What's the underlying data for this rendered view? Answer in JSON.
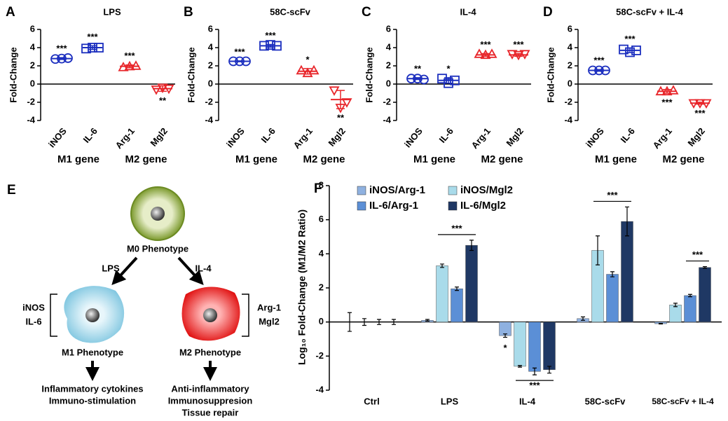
{
  "chart_data": [
    {
      "type": "dotplot",
      "panel": "A",
      "title": "LPS",
      "ylabel": "Fold-Change",
      "ylim": [
        -4,
        6
      ],
      "yticks": [
        -4,
        -2,
        0,
        2,
        4,
        6
      ],
      "categories": [
        "iNOS",
        "IL-6",
        "Arg-1",
        "Mgl2"
      ],
      "groups": [
        "M1 gene",
        "M2 gene"
      ],
      "colors": [
        "#1c2fbf",
        "#1c2fbf",
        "#e8262b",
        "#e8262b"
      ],
      "markers": [
        "circle",
        "square",
        "triangle",
        "triangle-down"
      ],
      "points": [
        [
          2.75,
          2.8,
          2.85
        ],
        [
          3.9,
          4.0,
          4.0
        ],
        [
          1.85,
          1.95,
          2.0
        ],
        [
          -0.6,
          -0.4,
          -0.5
        ]
      ],
      "means": [
        2.8,
        4.0,
        1.95,
        -0.5
      ],
      "sd": [
        0.1,
        0.2,
        0.15,
        0.3
      ],
      "significance": [
        "***",
        "***",
        "***",
        "**"
      ]
    },
    {
      "type": "dotplot",
      "panel": "B",
      "title": "58C-scFv",
      "ylabel": "Fold-Change",
      "ylim": [
        -4,
        6
      ],
      "yticks": [
        -4,
        -2,
        0,
        2,
        4,
        6
      ],
      "categories": [
        "iNOS",
        "IL-6",
        "Arg-1",
        "Mgl2"
      ],
      "groups": [
        "M1 gene",
        "M2 gene"
      ],
      "colors": [
        "#1c2fbf",
        "#1c2fbf",
        "#e8262b",
        "#e8262b"
      ],
      "markers": [
        "circle",
        "square",
        "triangle",
        "triangle-down"
      ],
      "points": [
        [
          2.5,
          2.5,
          2.5
        ],
        [
          4.2,
          4.3,
          4.2
        ],
        [
          1.5,
          1.2,
          1.5
        ],
        [
          -0.7,
          -2.6,
          -2.0
        ]
      ],
      "means": [
        2.5,
        4.2,
        1.4,
        -1.7
      ],
      "sd": [
        0.05,
        0.15,
        0.3,
        1.0
      ],
      "significance": [
        "***",
        "***",
        "*",
        "**"
      ]
    },
    {
      "type": "dotplot",
      "panel": "C",
      "title": "IL-4",
      "ylabel": "Fold-Change",
      "ylim": [
        -4,
        6
      ],
      "yticks": [
        -4,
        -2,
        0,
        2,
        4,
        6
      ],
      "categories": [
        "iNOS",
        "IL-6",
        "Arg-1",
        "Mgl2"
      ],
      "groups": [
        "M1 gene",
        "M2 gene"
      ],
      "colors": [
        "#1c2fbf",
        "#1c2fbf",
        "#e8262b",
        "#e8262b"
      ],
      "markers": [
        "circle",
        "square",
        "triangle",
        "triangle-down"
      ],
      "points": [
        [
          0.6,
          0.6,
          0.5
        ],
        [
          0.6,
          0.1,
          0.4
        ],
        [
          3.3,
          3.2,
          3.3
        ],
        [
          3.3,
          3.2,
          3.3
        ]
      ],
      "means": [
        0.6,
        0.4,
        3.2,
        3.2
      ],
      "sd": [
        0.1,
        0.3,
        0.15,
        0.15
      ],
      "significance": [
        "**",
        "*",
        "***",
        "***"
      ]
    },
    {
      "type": "dotplot",
      "panel": "D",
      "title": "58C-scFv + IL-4",
      "ylabel": "Fold-Change",
      "ylim": [
        -4,
        6
      ],
      "yticks": [
        -4,
        -2,
        0,
        2,
        4,
        6
      ],
      "categories": [
        "iNOS",
        "IL-6",
        "Arg-1",
        "Mgl2"
      ],
      "groups": [
        "M1 gene",
        "M2 gene"
      ],
      "colors": [
        "#1c2fbf",
        "#1c2fbf",
        "#e8262b",
        "#e8262b"
      ],
      "markers": [
        "circle",
        "square",
        "triangle",
        "triangle-down"
      ],
      "points": [
        [
          1.5,
          1.5,
          1.5
        ],
        [
          3.8,
          3.5,
          3.7
        ],
        [
          -0.8,
          -0.8,
          -0.7
        ],
        [
          -2.1,
          -2.1,
          -2.1
        ]
      ],
      "means": [
        1.5,
        3.7,
        -0.8,
        -2.1
      ],
      "sd": [
        0.1,
        0.25,
        0.2,
        0.1
      ],
      "significance": [
        "***",
        "***",
        "***",
        "***"
      ]
    },
    {
      "type": "bar",
      "panel": "F",
      "ylabel": "Log₁₀ Fold-Change (M1/M2 Ratio)",
      "ylim": [
        -4,
        8
      ],
      "yticks": [
        -4,
        -2,
        0,
        2,
        4,
        6,
        8
      ],
      "categories": [
        "Ctrl",
        "LPS",
        "IL-4",
        "58C-scFv",
        "58C-scFv + IL-4"
      ],
      "series": [
        {
          "name": "iNOS/Arg-1",
          "color": "#8fb1e0",
          "values": [
            0,
            0.1,
            -0.8,
            0.2,
            -0.1
          ],
          "errors": [
            0.55,
            0.05,
            0.1,
            0.1,
            0.02
          ]
        },
        {
          "name": "iNOS/Mgl2",
          "color": "#a9dbea",
          "values": [
            0,
            3.3,
            -2.6,
            4.2,
            1.0
          ],
          "errors": [
            0.2,
            0.1,
            0.05,
            0.85,
            0.1
          ]
        },
        {
          "name": "IL-6/Arg-1",
          "color": "#5b8fd6",
          "values": [
            0,
            1.95,
            -2.9,
            2.8,
            1.55
          ],
          "errors": [
            0.15,
            0.1,
            0.2,
            0.15,
            0.07
          ]
        },
        {
          "name": "IL-6/Mgl2",
          "color": "#1f3864",
          "values": [
            0,
            4.5,
            -2.8,
            5.9,
            3.2
          ],
          "errors": [
            0.15,
            0.3,
            0.2,
            0.85,
            0.05
          ]
        }
      ],
      "annotations": [
        "***",
        "*",
        "***",
        "***",
        "***"
      ]
    }
  ],
  "diagram": {
    "panel": "E",
    "m0": "M0 Phenotype",
    "lps": "LPS",
    "il4": "IL-4",
    "m1_markers": [
      "iNOS",
      "IL-6"
    ],
    "m2_markers": [
      "Arg-1",
      "Mgl2"
    ],
    "m1": "M1 Phenotype",
    "m2": "M2 Phenotype",
    "m1_effects": [
      "Inflammatory cytokines",
      "Immuno-stimulation"
    ],
    "m2_effects": [
      "Anti-inflammatory",
      "Immunosuppresion",
      "Tissue repair"
    ]
  }
}
